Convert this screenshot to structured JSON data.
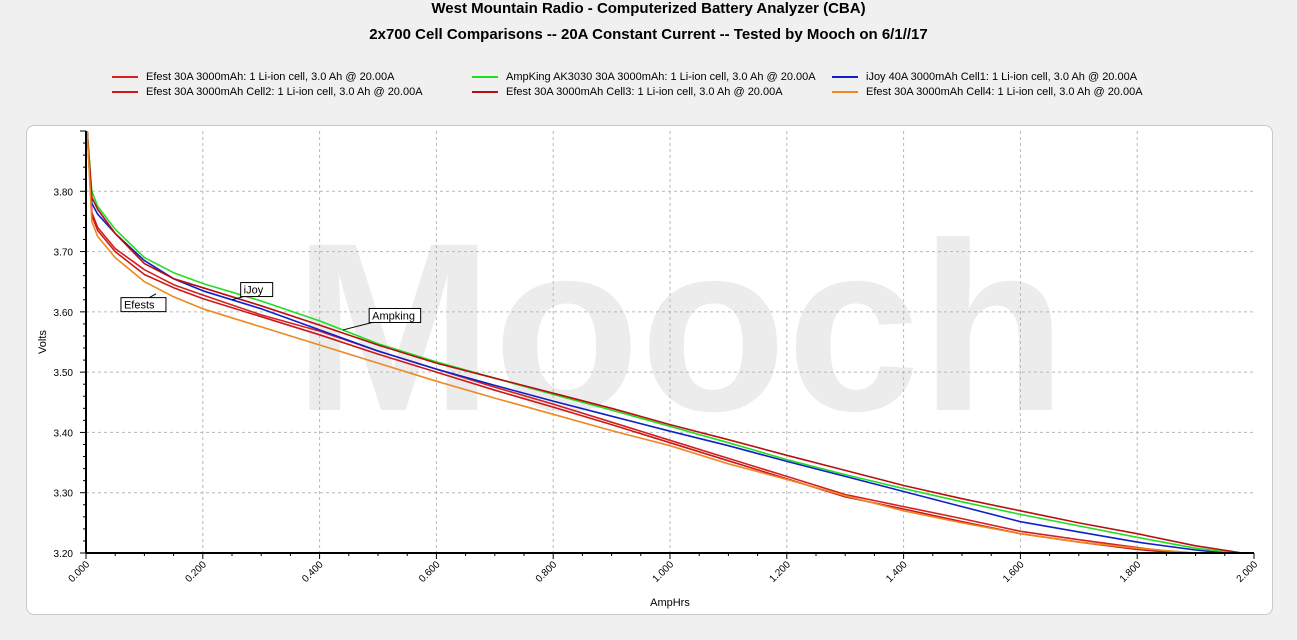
{
  "title": "West Mountain Radio - Computerized Battery Analyzer (CBA)",
  "subtitle": "2x700 Cell Comparisons -- 20A Constant Current -- Tested by Mooch on 6/1//17",
  "watermark": "Mooch",
  "chart_data": {
    "type": "line",
    "title": "West Mountain Radio - Computerized Battery Analyzer (CBA)",
    "subtitle": "2x700 Cell Comparisons -- 20A Constant Current -- Tested by Mooch on 6/1//17",
    "xlabel": "AmpHrs",
    "ylabel": "Volts",
    "xlim": [
      0,
      2.0
    ],
    "ylim": [
      3.2,
      3.9
    ],
    "x_ticks": [
      "0.000",
      "0.200",
      "0.400",
      "0.600",
      "0.800",
      "1.000",
      "1.200",
      "1.400",
      "1.600",
      "1.800",
      "2.000"
    ],
    "y_ticks": [
      "3.20",
      "3.30",
      "3.40",
      "3.50",
      "3.60",
      "3.70",
      "3.80"
    ],
    "grid": true,
    "legend_position": "top",
    "annotations": [
      {
        "label": "iJoy",
        "x": 0.27,
        "y": 3.637,
        "points_to": [
          0.25,
          3.62
        ]
      },
      {
        "label": "Efests",
        "x": 0.065,
        "y": 3.612,
        "points_to": [
          0.12,
          3.63
        ]
      },
      {
        "label": "Ampking",
        "x": 0.49,
        "y": 3.594,
        "points_to": [
          0.44,
          3.57
        ]
      }
    ],
    "series": [
      {
        "name": "Efest 30A 3000mAh: 1 Li-ion cell, 3.0 Ah @ 20.00A",
        "color": "#d42020",
        "x": [
          0.002,
          0.01,
          0.02,
          0.05,
          0.1,
          0.15,
          0.2,
          0.3,
          0.4,
          0.5,
          0.6,
          0.7,
          0.8,
          0.9,
          1.0,
          1.1,
          1.2,
          1.3,
          1.4,
          1.5,
          1.6,
          1.7,
          1.8,
          1.88
        ],
        "y": [
          3.85,
          3.765,
          3.74,
          3.705,
          3.67,
          3.645,
          3.628,
          3.595,
          3.568,
          3.535,
          3.505,
          3.475,
          3.447,
          3.417,
          3.387,
          3.357,
          3.327,
          3.297,
          3.277,
          3.257,
          3.236,
          3.222,
          3.209,
          3.2
        ]
      },
      {
        "name": "AmpKing AK3030 30A 3000mAh: 1 Li-ion cell, 3.0 Ah @ 20.00A",
        "color": "#22dd22",
        "x": [
          0.002,
          0.01,
          0.02,
          0.05,
          0.1,
          0.15,
          0.2,
          0.3,
          0.4,
          0.5,
          0.6,
          0.7,
          0.8,
          0.9,
          1.0,
          1.1,
          1.2,
          1.3,
          1.4,
          1.5,
          1.6,
          1.7,
          1.8,
          1.9,
          1.97
        ],
        "y": [
          3.86,
          3.8,
          3.775,
          3.737,
          3.69,
          3.665,
          3.647,
          3.618,
          3.585,
          3.547,
          3.517,
          3.49,
          3.463,
          3.437,
          3.41,
          3.383,
          3.355,
          3.33,
          3.307,
          3.285,
          3.264,
          3.245,
          3.226,
          3.208,
          3.2
        ]
      },
      {
        "name": "iJoy 40A 3000mAh Cell1: 1 Li-ion cell, 3.0 Ah @ 20.00A",
        "color": "#1020c8",
        "x": [
          0.002,
          0.01,
          0.02,
          0.05,
          0.1,
          0.15,
          0.2,
          0.3,
          0.4,
          0.5,
          0.6,
          0.7,
          0.8,
          0.9,
          1.0,
          1.1,
          1.2,
          1.3,
          1.4,
          1.5,
          1.6,
          1.7,
          1.8,
          1.9,
          1.95
        ],
        "y": [
          3.82,
          3.78,
          3.762,
          3.73,
          3.685,
          3.655,
          3.635,
          3.605,
          3.57,
          3.535,
          3.505,
          3.478,
          3.452,
          3.427,
          3.402,
          3.378,
          3.352,
          3.327,
          3.302,
          3.277,
          3.252,
          3.235,
          3.218,
          3.205,
          3.2
        ]
      },
      {
        "name": "Efest 30A 3000mAh Cell2: 1 Li-ion cell, 3.0 Ah @ 20.00A",
        "color": "#cc1818",
        "x": [
          0.002,
          0.01,
          0.02,
          0.05,
          0.1,
          0.15,
          0.2,
          0.3,
          0.4,
          0.5,
          0.6,
          0.7,
          0.8,
          0.9,
          1.0,
          1.1,
          1.2,
          1.3,
          1.4,
          1.5,
          1.6,
          1.7,
          1.8,
          1.87
        ],
        "y": [
          3.84,
          3.76,
          3.735,
          3.7,
          3.662,
          3.64,
          3.622,
          3.592,
          3.562,
          3.53,
          3.5,
          3.47,
          3.442,
          3.413,
          3.383,
          3.353,
          3.323,
          3.293,
          3.273,
          3.252,
          3.232,
          3.218,
          3.206,
          3.2
        ]
      },
      {
        "name": "Efest 30A 3000mAh Cell3: 1 Li-ion cell, 3.0 Ah @ 20.00A",
        "color": "#b81010",
        "x": [
          0.002,
          0.01,
          0.02,
          0.05,
          0.1,
          0.15,
          0.2,
          0.3,
          0.4,
          0.5,
          0.6,
          0.7,
          0.8,
          0.9,
          1.0,
          1.1,
          1.2,
          1.3,
          1.4,
          1.5,
          1.6,
          1.7,
          1.8,
          1.9,
          1.98
        ],
        "y": [
          3.86,
          3.79,
          3.77,
          3.73,
          3.68,
          3.655,
          3.64,
          3.61,
          3.578,
          3.545,
          3.515,
          3.49,
          3.465,
          3.44,
          3.413,
          3.388,
          3.362,
          3.337,
          3.312,
          3.29,
          3.27,
          3.25,
          3.232,
          3.212,
          3.2
        ]
      },
      {
        "name": "Efest 30A 3000mAh Cell4: 1 Li-ion cell, 3.0 Ah @ 20.00A",
        "color": "#ee8822",
        "x": [
          0.002,
          0.01,
          0.02,
          0.05,
          0.1,
          0.15,
          0.2,
          0.3,
          0.4,
          0.5,
          0.6,
          0.7,
          0.8,
          0.9,
          1.0,
          1.1,
          1.2,
          1.3,
          1.4,
          1.5,
          1.6,
          1.7,
          1.8,
          1.9
        ],
        "y": [
          3.83,
          3.75,
          3.725,
          3.69,
          3.65,
          3.625,
          3.605,
          3.575,
          3.545,
          3.515,
          3.485,
          3.457,
          3.43,
          3.403,
          3.378,
          3.348,
          3.322,
          3.295,
          3.27,
          3.25,
          3.232,
          3.218,
          3.208,
          3.2
        ]
      }
    ]
  }
}
